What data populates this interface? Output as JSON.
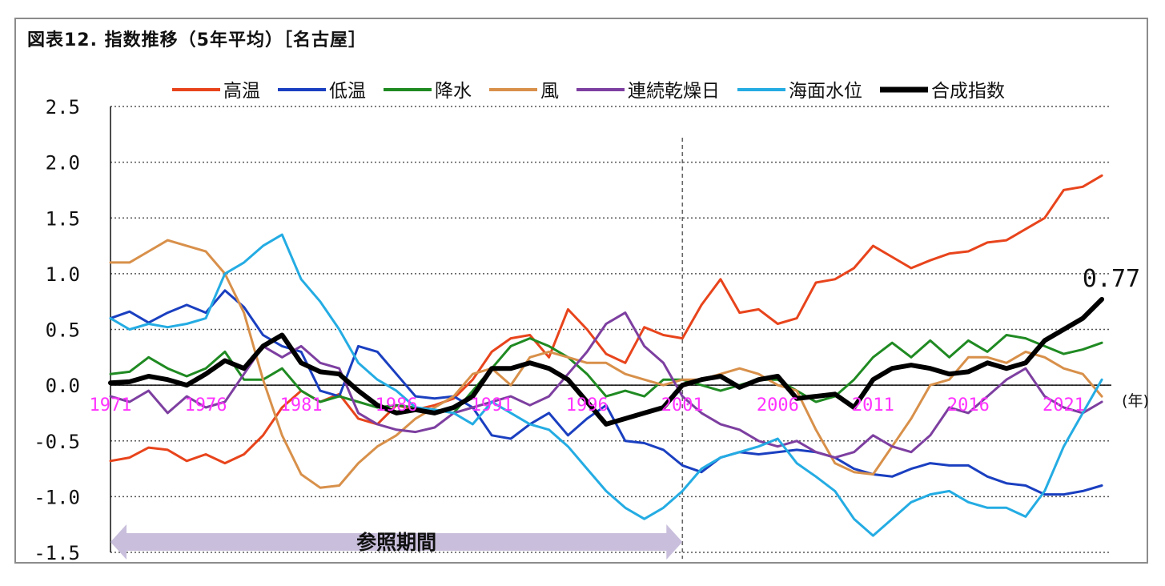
{
  "title": "図表12. 指数推移（5年平均）［名古屋］",
  "chart_data": {
    "type": "line",
    "title": "図表12. 指数推移（5年平均）［名古屋］",
    "xlabel": "(年)",
    "ylabel": "",
    "x": [
      1971,
      1972,
      1973,
      1974,
      1975,
      1976,
      1977,
      1978,
      1979,
      1980,
      1981,
      1982,
      1983,
      1984,
      1985,
      1986,
      1987,
      1988,
      1989,
      1990,
      1991,
      1992,
      1993,
      1994,
      1995,
      1996,
      1997,
      1998,
      1999,
      2000,
      2001,
      2002,
      2003,
      2004,
      2005,
      2006,
      2007,
      2008,
      2009,
      2010,
      2011,
      2012,
      2013,
      2014,
      2015,
      2016,
      2017,
      2018,
      2019,
      2020,
      2021,
      2022,
      2023
    ],
    "xlim": [
      1971,
      2023.5
    ],
    "x_ticks": [
      "1971",
      "1976",
      "1981",
      "1986",
      "1991",
      "1996",
      "2001",
      "2006",
      "2011",
      "2016",
      "2021"
    ],
    "y_ticks": [
      "2.5",
      "2.0",
      "1.5",
      "1.0",
      "0.5",
      "0.0",
      "-0.5",
      "-1.0",
      "-1.5"
    ],
    "ylim": [
      -1.5,
      2.5
    ],
    "reference_line_x": 2001,
    "reference_period": {
      "label": "参照期間",
      "from": 1971,
      "to": 2001
    },
    "end_label": "0.77",
    "series": [
      {
        "name": "高温",
        "color": "#e8441c",
        "width": 3,
        "values": [
          -0.68,
          -0.65,
          -0.56,
          -0.58,
          -0.68,
          -0.62,
          -0.7,
          -0.62,
          -0.45,
          -0.2,
          -0.05,
          -0.15,
          -0.08,
          -0.3,
          -0.35,
          -0.18,
          -0.22,
          -0.18,
          -0.12,
          0.05,
          0.3,
          0.42,
          0.45,
          0.25,
          0.68,
          0.5,
          0.28,
          0.2,
          0.52,
          0.45,
          0.42,
          0.72,
          0.95,
          0.65,
          0.68,
          0.55,
          0.6,
          0.92,
          0.95,
          1.05,
          1.25,
          1.15,
          1.05,
          1.12,
          1.18,
          1.2,
          1.28,
          1.3,
          1.4,
          1.5,
          1.75,
          1.78,
          1.88
        ]
      },
      {
        "name": "低温",
        "color": "#1a3fc0",
        "width": 3,
        "values": [
          0.6,
          0.66,
          0.56,
          0.65,
          0.72,
          0.65,
          0.85,
          0.7,
          0.45,
          0.35,
          0.3,
          -0.05,
          -0.1,
          0.35,
          0.3,
          0.1,
          -0.1,
          -0.12,
          -0.1,
          -0.2,
          -0.45,
          -0.48,
          -0.35,
          -0.25,
          -0.45,
          -0.3,
          -0.18,
          -0.5,
          -0.52,
          -0.58,
          -0.72,
          -0.78,
          -0.65,
          -0.6,
          -0.62,
          -0.6,
          -0.58,
          -0.6,
          -0.65,
          -0.75,
          -0.8,
          -0.82,
          -0.75,
          -0.7,
          -0.72,
          -0.72,
          -0.82,
          -0.88,
          -0.9,
          -0.98,
          -0.98,
          -0.95,
          -0.9
        ]
      },
      {
        "name": "降水",
        "color": "#1f8a22",
        "width": 3,
        "values": [
          0.1,
          0.12,
          0.25,
          0.15,
          0.08,
          0.15,
          0.3,
          0.05,
          0.05,
          0.15,
          -0.05,
          -0.15,
          -0.1,
          -0.15,
          -0.2,
          -0.18,
          -0.2,
          -0.22,
          -0.25,
          -0.05,
          0.15,
          0.35,
          0.42,
          0.35,
          0.25,
          0.1,
          -0.1,
          -0.05,
          -0.1,
          0.05,
          0.05,
          0.0,
          -0.05,
          0.0,
          0.05,
          0.05,
          -0.05,
          -0.15,
          -0.1,
          0.05,
          0.25,
          0.38,
          0.25,
          0.4,
          0.25,
          0.4,
          0.3,
          0.45,
          0.42,
          0.35,
          0.28,
          0.32,
          0.38
        ]
      },
      {
        "name": "風",
        "color": "#d8904a",
        "width": 3,
        "values": [
          1.1,
          1.1,
          1.2,
          1.3,
          1.25,
          1.2,
          1.0,
          0.65,
          0.05,
          -0.45,
          -0.8,
          -0.92,
          -0.9,
          -0.7,
          -0.55,
          -0.45,
          -0.3,
          -0.2,
          -0.1,
          0.1,
          0.15,
          0.0,
          0.25,
          0.3,
          0.25,
          0.2,
          0.2,
          0.1,
          0.05,
          0.0,
          0.05,
          0.05,
          0.1,
          0.15,
          0.1,
          0.0,
          -0.05,
          -0.4,
          -0.7,
          -0.78,
          -0.8,
          -0.55,
          -0.3,
          0.0,
          0.05,
          0.25,
          0.25,
          0.2,
          0.3,
          0.25,
          0.15,
          0.1,
          -0.1
        ]
      },
      {
        "name": "連続乾燥日",
        "color": "#7d3fa0",
        "width": 3,
        "values": [
          -0.1,
          -0.15,
          -0.05,
          -0.25,
          -0.1,
          -0.2,
          -0.15,
          0.1,
          0.35,
          0.25,
          0.35,
          0.2,
          0.15,
          -0.25,
          -0.35,
          -0.4,
          -0.42,
          -0.38,
          -0.25,
          -0.2,
          -0.15,
          -0.1,
          -0.18,
          -0.1,
          0.1,
          0.3,
          0.55,
          0.65,
          0.35,
          0.2,
          -0.1,
          -0.25,
          -0.35,
          -0.4,
          -0.5,
          -0.55,
          -0.5,
          -0.6,
          -0.65,
          -0.6,
          -0.45,
          -0.55,
          -0.6,
          -0.45,
          -0.2,
          -0.25,
          -0.1,
          0.05,
          0.15,
          -0.1,
          -0.2,
          -0.25,
          -0.15
        ]
      },
      {
        "name": "海面水位",
        "color": "#24ace3",
        "width": 3,
        "values": [
          0.6,
          0.5,
          0.55,
          0.52,
          0.55,
          0.6,
          1.0,
          1.1,
          1.25,
          1.35,
          0.95,
          0.75,
          0.5,
          0.2,
          0.05,
          -0.05,
          -0.2,
          -0.22,
          -0.25,
          -0.35,
          -0.15,
          -0.25,
          -0.35,
          -0.4,
          -0.55,
          -0.75,
          -0.95,
          -1.1,
          -1.2,
          -1.1,
          -0.95,
          -0.75,
          -0.65,
          -0.6,
          -0.55,
          -0.48,
          -0.7,
          -0.82,
          -0.95,
          -1.2,
          -1.35,
          -1.2,
          -1.05,
          -0.98,
          -0.95,
          -1.05,
          -1.1,
          -1.1,
          -1.18,
          -0.95,
          -0.55,
          -0.25,
          0.05
        ]
      },
      {
        "name": "合成指数",
        "color": "#000000",
        "width": 6,
        "values": [
          0.02,
          0.03,
          0.08,
          0.05,
          0.0,
          0.1,
          0.22,
          0.15,
          0.35,
          0.45,
          0.2,
          0.12,
          0.1,
          -0.05,
          -0.18,
          -0.25,
          -0.22,
          -0.25,
          -0.2,
          -0.1,
          0.15,
          0.15,
          0.2,
          0.15,
          0.05,
          -0.15,
          -0.35,
          -0.3,
          -0.25,
          -0.2,
          0.0,
          0.05,
          0.08,
          -0.02,
          0.05,
          0.08,
          -0.12,
          -0.1,
          -0.08,
          -0.2,
          0.05,
          0.15,
          0.18,
          0.15,
          0.1,
          0.12,
          0.2,
          0.15,
          0.2,
          0.4,
          0.5,
          0.6,
          0.77
        ]
      }
    ]
  }
}
